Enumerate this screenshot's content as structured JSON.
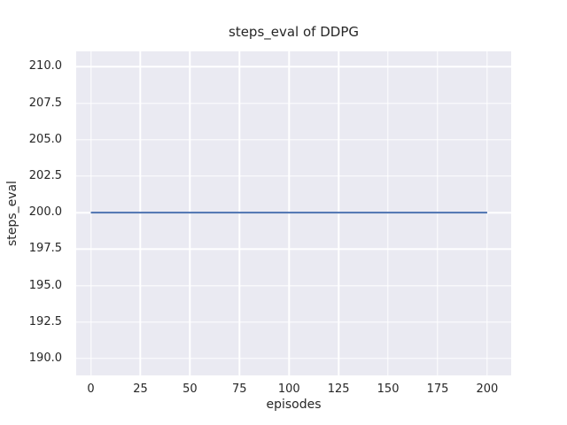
{
  "chart_data": {
    "type": "line",
    "title": "steps_eval of DDPG",
    "xlabel": "episodes",
    "ylabel": "steps_eval",
    "x_ticks": {
      "values": [
        0,
        25,
        50,
        75,
        100,
        125,
        150,
        175,
        200
      ],
      "labels": [
        "0",
        "25",
        "50",
        "75",
        "100",
        "125",
        "150",
        "175",
        "200"
      ]
    },
    "y_ticks": {
      "values": [
        190,
        192.5,
        195,
        197.5,
        200,
        202.5,
        205,
        207.5,
        210
      ],
      "labels": [
        "190.0",
        "192.5",
        "195.0",
        "197.5",
        "200.0",
        "202.5",
        "205.0",
        "207.5",
        "210.0"
      ]
    },
    "xlim": [
      -7.4,
      212.1
    ],
    "ylim": [
      188.85,
      211.05
    ],
    "grid": true,
    "legend_position": "none",
    "series": [
      {
        "name": "DDPG",
        "color": "#4C72B0",
        "linewidth": 2,
        "x": [
          0,
          200
        ],
        "y": [
          200,
          200
        ]
      }
    ],
    "colors": {
      "panel_background": "#EAEAF2",
      "grid": "#FFFFFF",
      "text": "#262626",
      "figure_background": "#FFFFFF"
    }
  }
}
